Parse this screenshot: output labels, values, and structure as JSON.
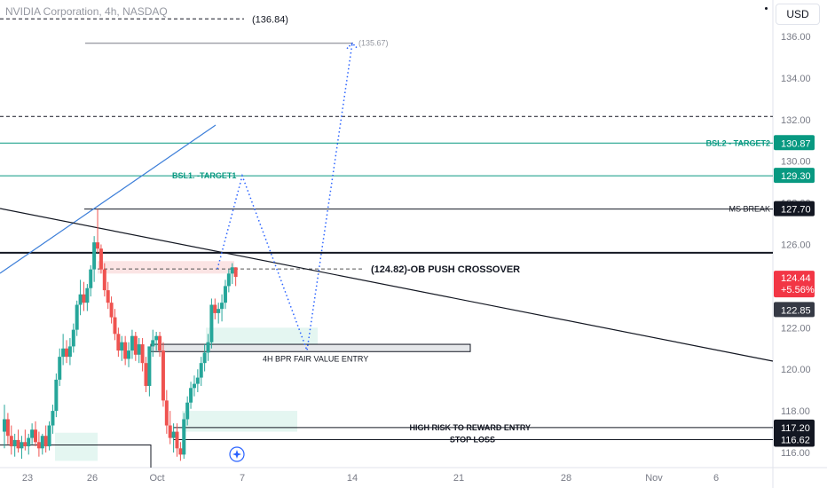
{
  "title": "NVIDIA Corporation, 4h, NASDAQ",
  "currency": "USD",
  "colors": {
    "up": "#26a69a",
    "down": "#ef5350",
    "teal": "#089981",
    "blue": "#2962ff",
    "black": "#131722",
    "price_red": "#f23645"
  },
  "chart_data": {
    "type": "candlestick",
    "ylim": [
      115.6,
      137.6
    ],
    "y_ticks": [
      "136.00",
      "134.00",
      "132.00",
      "130.00",
      "128.00",
      "126.00",
      "124.00",
      "122.00",
      "120.00",
      "118.00",
      "116.00"
    ],
    "x_ticks": [
      "23",
      "26",
      "Oct",
      "7",
      "14",
      "21",
      "28",
      "Nov",
      "6"
    ],
    "price_badges": {
      "current_price": "124.44",
      "change_pct": "+5.56%",
      "prev_level": "122.85",
      "ms_break": "127.70",
      "bsl1": "129.30",
      "bsl2": "130.87",
      "high_risk_entry": "117.20",
      "stop_loss": "116.62"
    },
    "levels": [
      {
        "label": "(136.84)",
        "value": 136.84
      },
      {
        "label": "(135.67)",
        "value": 135.67
      },
      {
        "label": "",
        "value": 132.15
      },
      {
        "label": "BSL2 - TARGET2",
        "value": 130.87
      },
      {
        "label": "BSL1. -TARGET1",
        "value": 129.3
      },
      {
        "label": "MS BREAK",
        "value": 127.7
      },
      {
        "label": "",
        "value": 125.6
      },
      {
        "label": "(124.82)-OB PUSH CROSSOVER",
        "value": 124.82
      },
      {
        "label": "HIGH RISK TO REWARD ENTRY",
        "value": 117.2
      },
      {
        "label": "STOP LOSS",
        "value": 116.62
      }
    ],
    "zones": [
      {
        "label": "4H BPR FAIR VALUE ENTRY",
        "from": 120.85,
        "to": 121.2
      },
      {
        "label": "",
        "from": 124.6,
        "to": 125.2
      },
      {
        "label": "",
        "from": 117.0,
        "to": 117.9
      },
      {
        "label": "",
        "from": 115.6,
        "to": 117.0
      }
    ],
    "candles": [
      [
        117.0,
        118.3,
        116.2,
        117.6
      ],
      [
        117.6,
        117.9,
        116.4,
        116.8
      ],
      [
        116.8,
        117.3,
        115.9,
        116.3
      ],
      [
        116.3,
        116.9,
        115.8,
        116.6
      ],
      [
        116.6,
        117.1,
        116.0,
        116.2
      ],
      [
        116.2,
        116.8,
        115.7,
        116.5
      ],
      [
        116.5,
        117.1,
        116.1,
        116.3
      ],
      [
        116.3,
        116.9,
        115.9,
        116.7
      ],
      [
        116.7,
        117.4,
        116.4,
        117.1
      ],
      [
        117.1,
        117.5,
        116.3,
        116.5
      ],
      [
        116.5,
        117.0,
        115.8,
        116.2
      ],
      [
        116.2,
        116.9,
        115.9,
        116.8
      ],
      [
        116.8,
        117.3,
        116.0,
        116.3
      ],
      [
        116.3,
        117.5,
        116.1,
        117.3
      ],
      [
        117.3,
        118.3,
        116.9,
        118.0
      ],
      [
        118.0,
        119.8,
        117.7,
        119.5
      ],
      [
        119.5,
        121.0,
        119.2,
        120.6
      ],
      [
        120.6,
        121.7,
        120.2,
        121.0
      ],
      [
        121.0,
        121.4,
        120.3,
        120.6
      ],
      [
        120.6,
        121.5,
        120.2,
        121.1
      ],
      [
        121.1,
        122.2,
        120.8,
        121.9
      ],
      [
        121.9,
        123.3,
        121.6,
        123.1
      ],
      [
        123.1,
        124.3,
        122.6,
        123.6
      ],
      [
        123.6,
        124.2,
        122.8,
        123.2
      ],
      [
        123.2,
        124.1,
        122.8,
        123.9
      ],
      [
        123.9,
        125.0,
        123.5,
        124.8
      ],
      [
        124.8,
        126.4,
        124.2,
        126.1
      ],
      [
        126.1,
        127.7,
        125.6,
        125.8
      ],
      [
        125.8,
        126.0,
        124.6,
        124.8
      ],
      [
        124.8,
        125.1,
        123.5,
        123.8
      ],
      [
        123.8,
        124.2,
        122.9,
        123.2
      ],
      [
        123.2,
        123.5,
        122.2,
        122.5
      ],
      [
        122.5,
        122.9,
        121.4,
        121.7
      ],
      [
        121.7,
        122.0,
        120.6,
        120.9
      ],
      [
        120.9,
        121.6,
        120.4,
        121.3
      ],
      [
        121.3,
        121.6,
        120.2,
        120.5
      ],
      [
        120.5,
        121.3,
        120.1,
        120.9
      ],
      [
        120.9,
        121.9,
        120.5,
        121.6
      ],
      [
        121.6,
        121.8,
        120.4,
        120.7
      ],
      [
        120.7,
        121.5,
        120.3,
        121.2
      ],
      [
        121.2,
        121.5,
        119.9,
        120.3
      ],
      [
        120.3,
        120.6,
        118.9,
        119.2
      ],
      [
        119.2,
        121.0,
        118.7,
        121.1
      ],
      [
        121.1,
        121.9,
        120.6,
        121.4
      ],
      [
        121.4,
        121.8,
        120.9,
        121.6
      ],
      [
        121.6,
        121.8,
        120.6,
        120.9
      ],
      [
        120.9,
        121.3,
        118.2,
        118.5
      ],
      [
        118.5,
        119.0,
        116.9,
        117.3
      ],
      [
        117.3,
        118.0,
        116.4,
        116.7
      ],
      [
        116.7,
        117.4,
        116.0,
        117.0
      ],
      [
        117.0,
        117.4,
        115.8,
        116.2
      ],
      [
        116.2,
        116.5,
        115.6,
        115.9
      ],
      [
        115.9,
        117.9,
        115.7,
        117.6
      ],
      [
        117.6,
        118.7,
        117.3,
        118.4
      ],
      [
        118.4,
        119.4,
        118.1,
        119.1
      ],
      [
        119.1,
        119.7,
        118.7,
        119.3
      ],
      [
        119.3,
        120.0,
        118.9,
        119.6
      ],
      [
        119.6,
        120.6,
        119.2,
        120.3
      ],
      [
        120.3,
        121.2,
        119.9,
        120.8
      ],
      [
        120.8,
        121.7,
        120.4,
        121.3
      ],
      [
        121.3,
        123.4,
        121.0,
        123.1
      ],
      [
        123.1,
        123.4,
        122.4,
        122.7
      ],
      [
        122.7,
        123.2,
        122.2,
        122.9
      ],
      [
        122.9,
        123.6,
        122.3,
        123.2
      ],
      [
        123.2,
        124.3,
        122.9,
        124.0
      ],
      [
        124.0,
        124.8,
        123.7,
        124.6
      ],
      [
        124.6,
        125.1,
        124.1,
        124.9
      ],
      [
        124.9,
        124.9,
        124.0,
        124.44
      ]
    ],
    "projection": [
      [
        "5",
        124.82
      ],
      [
        "7",
        129.3
      ],
      [
        "11",
        120.9
      ],
      [
        "14",
        135.67
      ]
    ]
  }
}
